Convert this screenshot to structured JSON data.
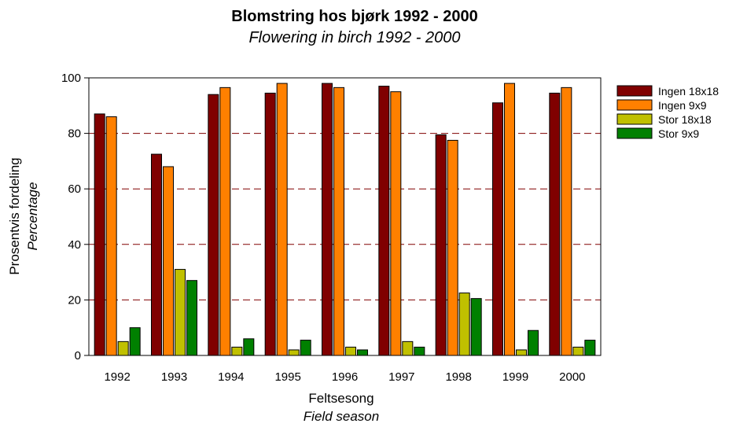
{
  "chart_data": {
    "type": "bar",
    "title": "Blomstring hos bjørk 1992 - 2000",
    "subtitle": "Flowering in birch 1992 - 2000",
    "xlabel": "Feltsesong",
    "xlabel_en": "Field season",
    "ylabel": "Prosentvis fordeling",
    "ylabel_en": "Percentage",
    "categories": [
      "1992",
      "1993",
      "1994",
      "1995",
      "1996",
      "1997",
      "1998",
      "1999",
      "2000"
    ],
    "ylim": [
      0,
      100
    ],
    "yticks": [
      0,
      20,
      40,
      60,
      80,
      100
    ],
    "grid": "dashed horizontal",
    "legend_position": "right",
    "series": [
      {
        "name": "Ingen 18x18",
        "color": "#800000",
        "values": [
          87,
          72.5,
          94,
          94.5,
          98,
          97,
          79.5,
          91,
          94.5
        ]
      },
      {
        "name": "Ingen 9x9",
        "color": "#ff8000",
        "values": [
          86,
          68,
          96.5,
          98,
          96.5,
          95,
          77.5,
          98,
          96.5
        ]
      },
      {
        "name": "Stor 18x18",
        "color": "#c0c000",
        "values": [
          5,
          31,
          3,
          2,
          3,
          5,
          22.5,
          2,
          3
        ]
      },
      {
        "name": "Stor 9x9",
        "color": "#008000",
        "values": [
          10,
          27,
          6,
          5.5,
          2,
          3,
          20.5,
          9,
          5.5
        ]
      }
    ]
  }
}
